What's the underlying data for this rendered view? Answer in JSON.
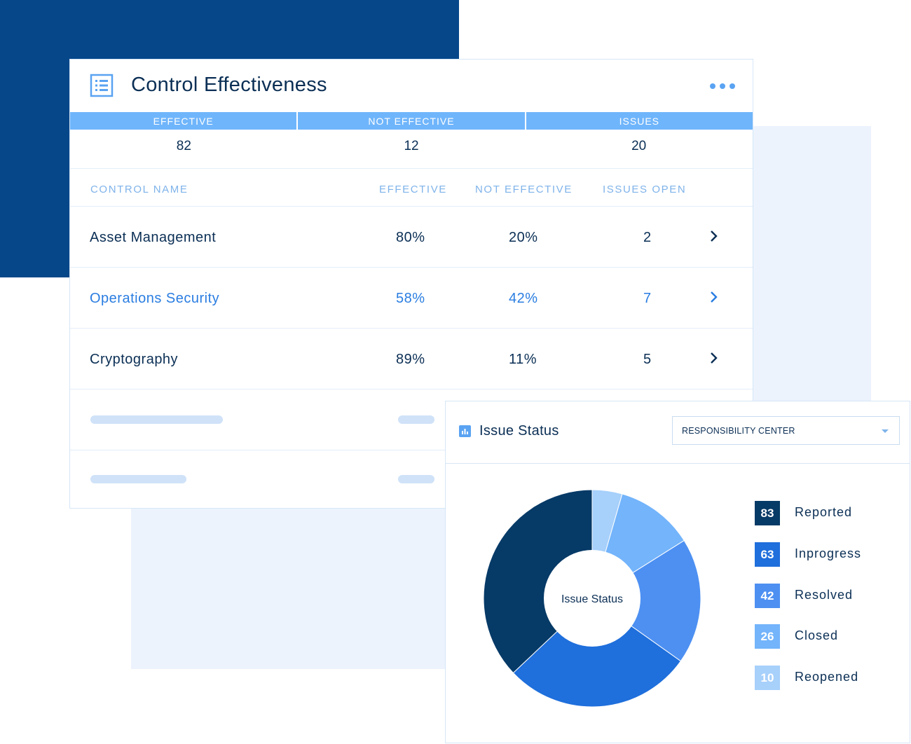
{
  "control_effectiveness": {
    "title": "Control Effectiveness",
    "summary": {
      "headers": [
        "EFFECTIVE",
        "NOT EFFECTIVE",
        "ISSUES"
      ],
      "values": [
        "82",
        "12",
        "20"
      ]
    },
    "table": {
      "headers": {
        "control_name": "CONTROL NAME",
        "effective": "EFFECTIVE",
        "not_effective": "NOT EFFECTIVE",
        "issues_open": "ISSUES OPEN"
      },
      "rows": [
        {
          "name": "Asset Management",
          "effective": "80%",
          "not_effective": "20%",
          "issues_open": "2"
        },
        {
          "name": "Operations Security",
          "effective": "58%",
          "not_effective": "42%",
          "issues_open": "7"
        },
        {
          "name": "Cryptography",
          "effective": "89%",
          "not_effective": "11%",
          "issues_open": "5"
        }
      ]
    }
  },
  "issue_status": {
    "title": "Issue Status",
    "dropdown": {
      "selected": "RESPONSIBILITY CENTER"
    },
    "chart_data": {
      "type": "pie",
      "center_label": "Issue Status",
      "categories": [
        "Reported",
        "Inprogress",
        "Resolved",
        "Closed",
        "Reopened"
      ],
      "values": [
        83,
        63,
        42,
        26,
        10
      ],
      "colors": [
        "#063a67",
        "#1f6fdc",
        "#4d90f2",
        "#73b4fb",
        "#a7d0fb"
      ]
    }
  },
  "colors": {
    "brand_dark": "#064789",
    "accent": "#2a7de1",
    "header_bar": "#6fb5fb",
    "text_dark": "#0b2f55"
  }
}
